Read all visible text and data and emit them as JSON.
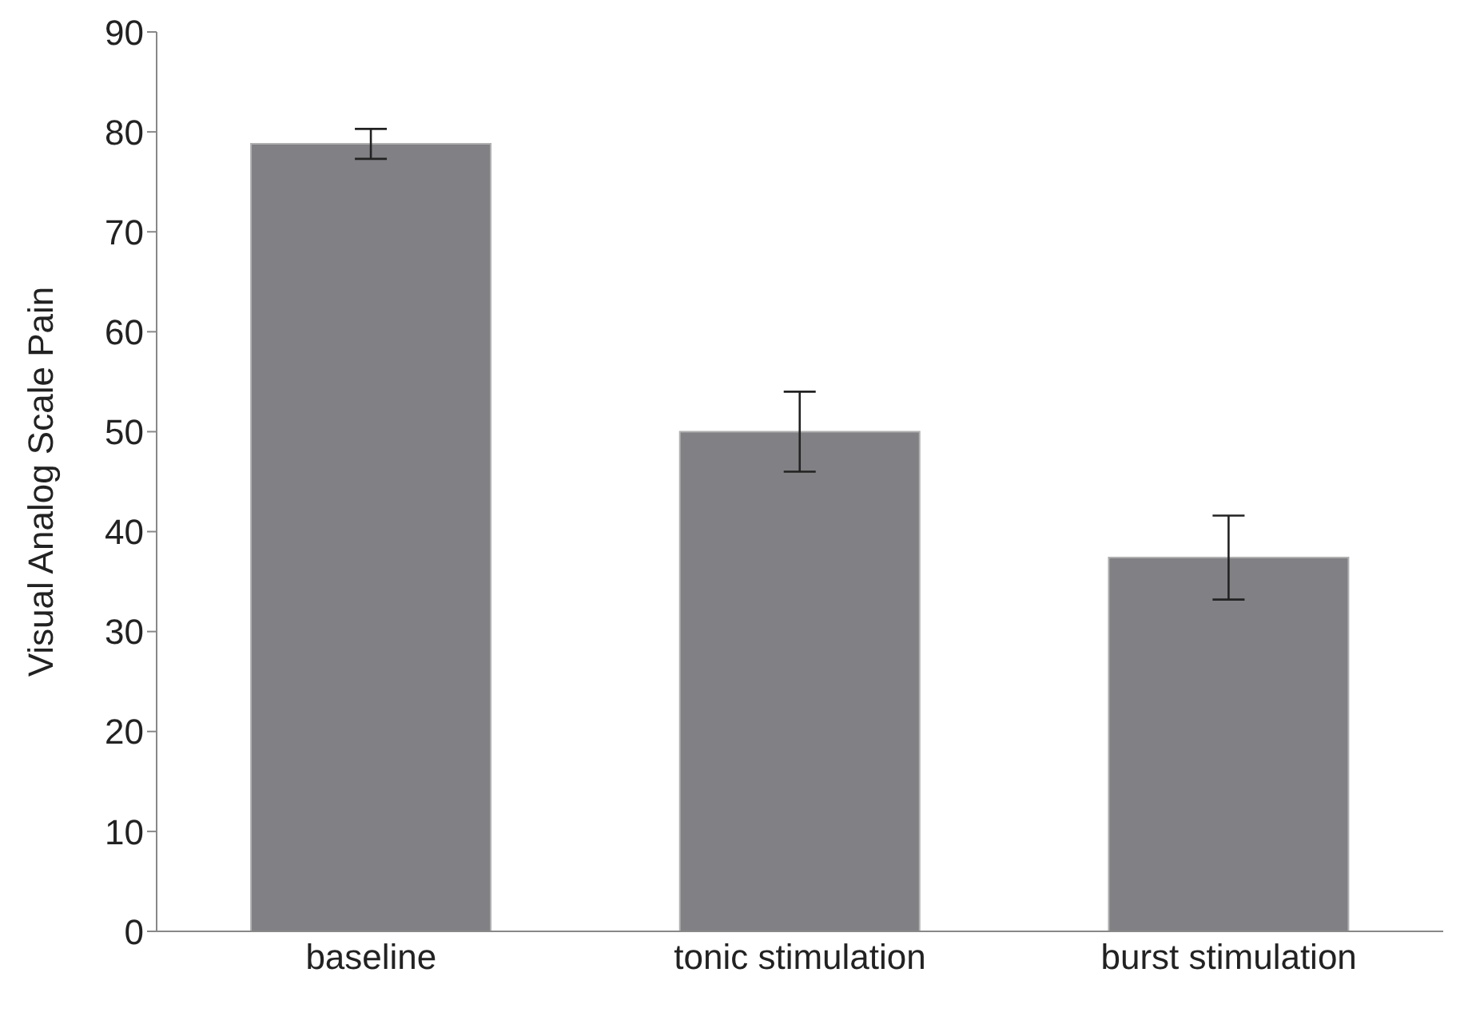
{
  "chart_data": {
    "type": "bar",
    "ylabel": "Visual Analog Scale Pain",
    "categories": [
      "baseline",
      "tonic stimulation",
      "burst stimulation"
    ],
    "values": [
      78.8,
      50.0,
      37.4
    ],
    "errors": [
      1.5,
      4.0,
      4.2
    ],
    "color": "#808085",
    "ylim": [
      0,
      90
    ],
    "yticks": [
      0,
      10,
      20,
      30,
      40,
      50,
      60,
      70,
      80,
      90
    ],
    "grid": false,
    "legend": false
  }
}
